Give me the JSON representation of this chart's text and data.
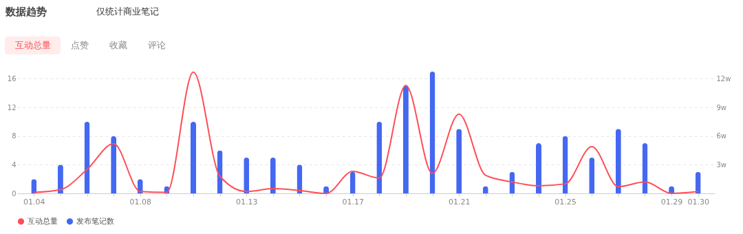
{
  "chart_data": {
    "type": "bar",
    "title": "数据趋势",
    "annotations": [
      "仅统计商业笔记",
      "互动总量",
      "点赞",
      "收藏",
      "评论"
    ],
    "categories": [
      "01.04",
      null,
      null,
      null,
      "01.08",
      null,
      null,
      null,
      "01.13",
      null,
      null,
      null,
      "01.17",
      null,
      null,
      null,
      "01.21",
      null,
      null,
      null,
      "01.25",
      null,
      null,
      null,
      "01.29",
      "01.30"
    ],
    "series": [
      {
        "name": "互动总量",
        "type": "line",
        "axis": "y2",
        "color": "#ff4d55",
        "values": [
          0.1,
          0.4,
          2.5,
          5.2,
          0.2,
          0.1,
          12.7,
          1.8,
          0.2,
          0.5,
          0.3,
          0,
          2.3,
          1.6,
          11.3,
          2.1,
          8.3,
          1.9,
          1.2,
          0.8,
          1.0,
          4.9,
          0.7,
          1.2,
          0,
          0.2
        ]
      },
      {
        "name": "发布笔记数",
        "color": "#4468f2",
        "values": [
          2,
          4,
          10,
          8,
          2,
          1,
          10,
          6,
          5,
          5,
          4,
          1,
          3,
          10,
          15,
          17,
          9,
          1,
          3,
          7,
          8,
          5,
          9,
          7,
          1,
          3
        ]
      }
    ],
    "ylim": [
      0,
      17
    ],
    "yticks": [
      0,
      4,
      8,
      12,
      16
    ],
    "y2lim": [
      0,
      12.75
    ],
    "y2ticks": [
      {
        "value": 3,
        "label": "3w"
      },
      {
        "value": 6,
        "label": "6w"
      },
      {
        "value": 9,
        "label": "9w"
      },
      {
        "value": 12,
        "label": "12w"
      }
    ],
    "grid": "y",
    "legend": "bottom",
    "line_style": "solid",
    "marker": "none"
  }
}
